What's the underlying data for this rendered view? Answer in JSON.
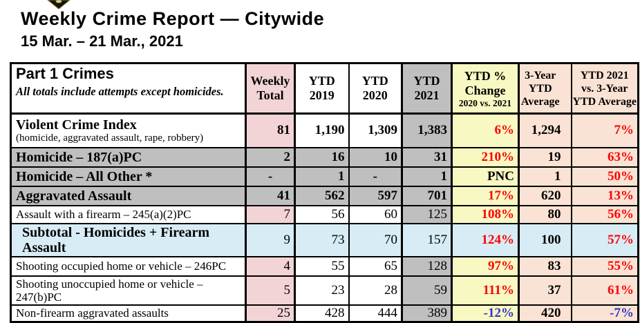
{
  "page": {
    "title": "Weekly Crime Report — Citywide",
    "date_range": "15 Mar. – 21 Mar., 2021",
    "badge_icon": "police-badge (partially cropped at top edge)"
  },
  "colors": {
    "pink": "#f3d4d6",
    "gray": "#bfbfbf",
    "yellow": "#f8f8c3",
    "peach": "#fae3d4",
    "blue_row": "#d7ecf5",
    "red": "#ff0000",
    "blue": "#3333cc"
  },
  "table": {
    "header": {
      "col1_title": "Part 1 Crimes",
      "col1_note": "All totals include attempts except homicides.",
      "columns": [
        {
          "line1": "Weekly",
          "line2": "Total"
        },
        {
          "line1": "YTD",
          "line2": "2019"
        },
        {
          "line1": "YTD",
          "line2": "2020"
        },
        {
          "line1": "YTD",
          "line2": "2021"
        },
        {
          "line1": "YTD %",
          "line2": "Change",
          "subline": "2020 vs. 2021"
        },
        {
          "line1": "3-Year",
          "line2": "YTD",
          "line3": "Average"
        },
        {
          "line1": "YTD 2021",
          "line2": "vs. 3-Year",
          "line3": "YTD Average"
        }
      ]
    },
    "rows": [
      {
        "label": "Violent Crime Index",
        "sublabel": "(homicide, aggravated assault, rape, robbery)",
        "style": "white",
        "label_bold": true,
        "indent": false,
        "emphasis": true,
        "weekly": "81",
        "ytd2019": "1,190",
        "ytd2020": "1,309",
        "ytd2021": "1,383",
        "pct_change": "6%",
        "pct_class": "pos",
        "avg_3yr": "1,294",
        "vs_3yr": "7%",
        "vs_class": "pos"
      },
      {
        "label": "Homicide – 187(a)PC",
        "style": "gray",
        "label_bold": true,
        "indent": false,
        "emphasis": true,
        "weekly": "2",
        "ytd2019": "16",
        "ytd2020": "10",
        "ytd2021": "31",
        "pct_change": "210%",
        "pct_class": "pos",
        "avg_3yr": "19",
        "vs_3yr": "63%",
        "vs_class": "pos"
      },
      {
        "label": "Homicide – All Other *",
        "style": "gray",
        "label_bold": true,
        "indent": false,
        "emphasis": true,
        "weekly": "-",
        "ytd2019": "1",
        "ytd2020": "-",
        "ytd2021": "1",
        "pct_change": "PNC",
        "pct_class": "neutral",
        "avg_3yr": "1",
        "vs_3yr": "50%",
        "vs_class": "pos"
      },
      {
        "label": "Aggravated Assault",
        "style": "gray",
        "label_bold": true,
        "indent": false,
        "emphasis": true,
        "weekly": "41",
        "ytd2019": "562",
        "ytd2020": "597",
        "ytd2021": "701",
        "pct_change": "17%",
        "pct_class": "pos",
        "avg_3yr": "620",
        "vs_3yr": "13%",
        "vs_class": "pos"
      },
      {
        "label": "Assault with a firearm – 245(a)(2)PC",
        "style": "white",
        "label_bold": false,
        "indent": false,
        "emphasis": false,
        "weekly": "7",
        "ytd2019": "56",
        "ytd2020": "60",
        "ytd2021": "125",
        "pct_change": "108%",
        "pct_class": "pos",
        "avg_3yr": "80",
        "vs_3yr": "56%",
        "vs_class": "pos"
      },
      {
        "label": "Subtotal - Homicides + Firearm Assault",
        "style": "blue",
        "label_bold": true,
        "indent": true,
        "emphasis": false,
        "weekly": "9",
        "ytd2019": "73",
        "ytd2020": "70",
        "ytd2021": "157",
        "pct_change": "124%",
        "pct_class": "pos",
        "avg_3yr": "100",
        "vs_3yr": "57%",
        "vs_class": "pos"
      },
      {
        "label": "Shooting occupied home or vehicle – 246PC",
        "style": "white",
        "label_bold": false,
        "indent": false,
        "emphasis": false,
        "weekly": "4",
        "ytd2019": "55",
        "ytd2020": "65",
        "ytd2021": "128",
        "pct_change": "97%",
        "pct_class": "pos",
        "avg_3yr": "83",
        "vs_3yr": "55%",
        "vs_class": "pos"
      },
      {
        "label": "Shooting unoccupied home or vehicle – 247(b)PC",
        "style": "white",
        "label_bold": false,
        "indent": false,
        "emphasis": false,
        "weekly": "5",
        "ytd2019": "23",
        "ytd2020": "28",
        "ytd2021": "59",
        "pct_change": "111%",
        "pct_class": "pos",
        "avg_3yr": "37",
        "vs_3yr": "61%",
        "vs_class": "pos"
      },
      {
        "label": "Non-firearm aggravated assaults",
        "style": "white",
        "label_bold": false,
        "indent": false,
        "emphasis": false,
        "weekly": "25",
        "ytd2019": "428",
        "ytd2020": "444",
        "ytd2021": "389",
        "pct_change": "-12%",
        "pct_class": "neg",
        "avg_3yr": "420",
        "vs_3yr": "-7%",
        "vs_class": "neg"
      }
    ]
  }
}
